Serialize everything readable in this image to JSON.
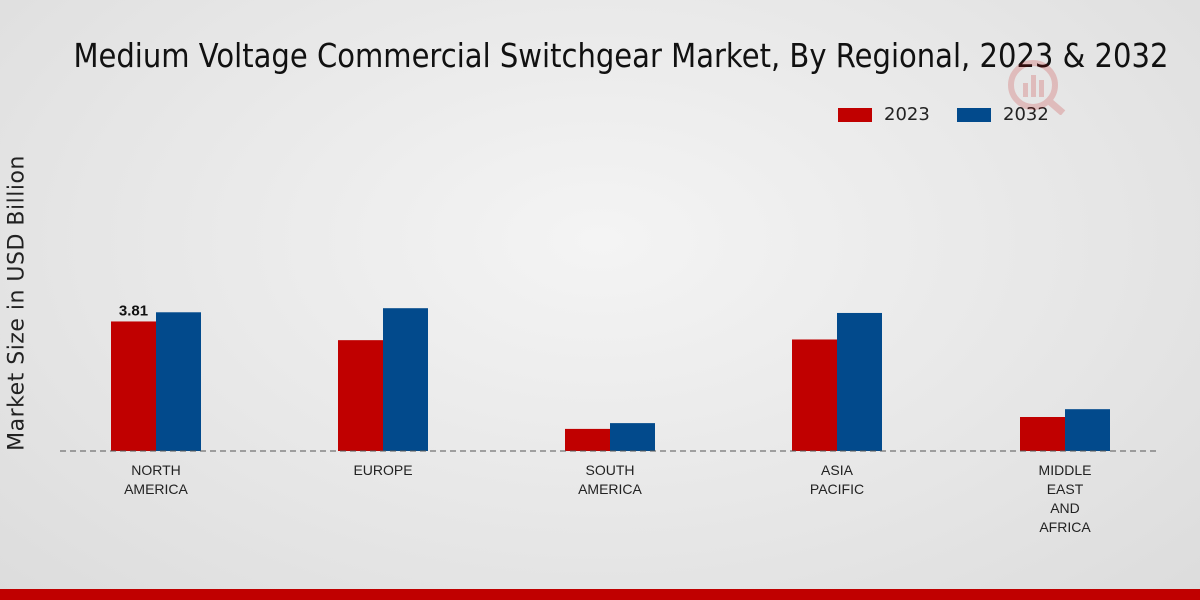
{
  "chart_data": {
    "type": "bar",
    "title": "Medium Voltage Commercial Switchgear Market, By Regional, 2023 & 2032",
    "xlabel": "",
    "ylabel": "Market Size in USD Billion",
    "categories": [
      [
        "NORTH",
        "AMERICA"
      ],
      [
        "EUROPE"
      ],
      [
        "SOUTH",
        "AMERICA"
      ],
      [
        "ASIA",
        "PACIFIC"
      ],
      [
        "MIDDLE",
        "EAST",
        "AND",
        "AFRICA"
      ]
    ],
    "series": [
      {
        "name": "2023",
        "values": [
          3.81,
          3.26,
          0.65,
          3.28,
          1.0
        ]
      },
      {
        "name": "2032",
        "values": [
          4.08,
          4.2,
          0.82,
          4.06,
          1.23
        ]
      }
    ],
    "data_labels": [
      {
        "series": 0,
        "index": 0,
        "text": "3.81"
      }
    ],
    "ylim": [
      0,
      10.5
    ],
    "grid": false,
    "legend": "top-right"
  },
  "colors": {
    "s2023": "#c00000",
    "s2032": "#024a8c",
    "bottom_bar": "#c00000"
  },
  "icons": {
    "watermark": "chart-logo-icon"
  }
}
